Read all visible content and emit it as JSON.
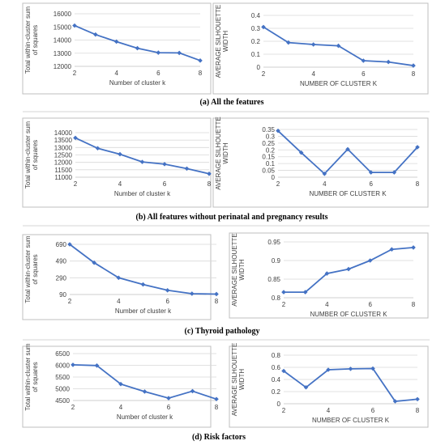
{
  "chart_data": [
    {
      "type": "line",
      "title": "",
      "x": [
        2,
        3,
        4,
        5,
        6,
        7,
        8
      ],
      "values": [
        15100,
        14420,
        13880,
        13380,
        13040,
        13020,
        12440
      ],
      "xlabel": "Number of cluster k",
      "ylabel": [
        "Total within-cluster sum",
        "of squares"
      ],
      "xlim": [
        2,
        8
      ],
      "ylim": [
        12000,
        16000
      ],
      "xticks": [
        2,
        4,
        6,
        8
      ],
      "yticks": [
        12000,
        13000,
        14000,
        15000,
        16000
      ],
      "yticklabels": [
        "12000",
        "13000",
        "14000",
        "15000",
        "16000"
      ],
      "grid": true
    },
    {
      "type": "line",
      "title": "",
      "x": [
        2,
        3,
        4,
        5,
        6,
        7,
        8
      ],
      "values": [
        0.31,
        0.19,
        0.175,
        0.165,
        0.05,
        0.04,
        0.012
      ],
      "xlabel": "NUMBER OF CLUSTER K",
      "ylabel": [
        "AVERAGE SILHOUETTE",
        "WIDTH"
      ],
      "xlim": [
        2,
        8
      ],
      "ylim": [
        0,
        0.4
      ],
      "xticks": [
        2,
        4,
        6,
        8
      ],
      "yticks": [
        0,
        0.1,
        0.2,
        0.3,
        0.4
      ],
      "yticklabels": [
        "0",
        "0.1",
        "0.2",
        "0.3",
        "0.4"
      ],
      "grid": true
    },
    {
      "type": "line",
      "title": "",
      "x": [
        2,
        3,
        4,
        5,
        6,
        7,
        8
      ],
      "values": [
        13650,
        12950,
        12550,
        12030,
        11880,
        11580,
        11230
      ],
      "xlabel": "Number of cluster k",
      "ylabel": [
        "Total within-cluster sum",
        "of squares"
      ],
      "xlim": [
        2,
        8
      ],
      "ylim": [
        11000,
        14000
      ],
      "xticks": [
        2,
        4,
        6,
        8
      ],
      "yticks": [
        11000,
        11500,
        12000,
        12500,
        13000,
        13500,
        14000
      ],
      "yticklabels": [
        "11000",
        "11500",
        "12000",
        "12500",
        "13000",
        "13500",
        "14000"
      ],
      "grid": true
    },
    {
      "type": "line",
      "title": "",
      "x": [
        2,
        3,
        4,
        5,
        6,
        7,
        8
      ],
      "values": [
        0.34,
        0.18,
        0.025,
        0.205,
        0.035,
        0.035,
        0.22
      ],
      "xlabel": "NUMBER OF CLUSTER K",
      "ylabel": [
        "AVERAGE SILHOUETTE",
        "WIDTH"
      ],
      "xlim": [
        2,
        8
      ],
      "ylim": [
        0,
        0.35
      ],
      "xticks": [
        2,
        4,
        6,
        8
      ],
      "yticks": [
        0,
        0.05,
        0.1,
        0.15,
        0.2,
        0.25,
        0.3,
        0.35
      ],
      "yticklabels": [
        "0",
        "0.05",
        "0.1",
        "0.15",
        "0.2",
        "0.25",
        "0.3",
        "0.35"
      ],
      "grid": true
    },
    {
      "type": "line",
      "title": "",
      "x": [
        2,
        3,
        4,
        5,
        6,
        7,
        8
      ],
      "values": [
        690,
        470,
        290,
        210,
        140,
        100,
        95
      ],
      "xlabel": "Number of cluster k",
      "ylabel": [
        "Total within-cluster sum",
        "of squares"
      ],
      "xlim": [
        2,
        8
      ],
      "ylim": [
        90,
        690
      ],
      "xticks": [
        2,
        4,
        6,
        8
      ],
      "yticks": [
        90,
        290,
        490,
        690
      ],
      "yticklabels": [
        "90",
        "290",
        "490",
        "690"
      ],
      "grid": true
    },
    {
      "type": "line",
      "title": "",
      "x": [
        2,
        3,
        4,
        5,
        6,
        7,
        8
      ],
      "values": [
        0.815,
        0.815,
        0.865,
        0.877,
        0.9,
        0.93,
        0.935
      ],
      "xlabel": "NUMBER OF CLUSTER K",
      "ylabel": [
        "AVERAGE SILHOUETTE",
        "WIDTH"
      ],
      "xlim": [
        2,
        8
      ],
      "ylim": [
        0.8,
        0.95
      ],
      "xticks": [
        2,
        4,
        6,
        8
      ],
      "yticks": [
        0.8,
        0.85,
        0.9,
        0.95
      ],
      "yticklabels": [
        "0.8",
        "0.85",
        "0.9",
        "0.95"
      ],
      "grid": true
    },
    {
      "type": "line",
      "title": "",
      "x": [
        2,
        3,
        4,
        5,
        6,
        7,
        8
      ],
      "values": [
        6020,
        5990,
        5200,
        4880,
        4600,
        4900,
        4560
      ],
      "xlabel": "Number of cluster k",
      "ylabel": [
        "Total within-cluster sum",
        "of squares"
      ],
      "xlim": [
        2,
        8
      ],
      "ylim": [
        4500,
        6500
      ],
      "xticks": [
        2,
        4,
        6,
        8
      ],
      "yticks": [
        4500,
        5000,
        5500,
        6000,
        6500
      ],
      "yticklabels": [
        "4500",
        "5000",
        "5500",
        "6000",
        "6500"
      ],
      "grid": true
    },
    {
      "type": "line",
      "title": "",
      "x": [
        2,
        3,
        4,
        5,
        6,
        7,
        8
      ],
      "values": [
        0.54,
        0.27,
        0.56,
        0.575,
        0.58,
        0.04,
        0.075
      ],
      "xlabel": "NUMBER OF CLUSTER K",
      "ylabel": [
        "AVERAGE SILHOUETTE",
        "WIDTH"
      ],
      "xlim": [
        2,
        8
      ],
      "ylim": [
        0,
        0.8
      ],
      "xticks": [
        2,
        4,
        6,
        8
      ],
      "yticks": [
        0,
        0.2,
        0.4,
        0.6,
        0.8
      ],
      "yticklabels": [
        "0",
        "0.2",
        "0.4",
        "0.6",
        "0.8"
      ],
      "grid": true
    }
  ],
  "captions": [
    "(a) All the features",
    "(b) All features without perinatal and pregnancy results",
    "(c) Thyroid pathology",
    "(d) Risk factors"
  ],
  "colors": {
    "series": "#4472c4",
    "grid": "#d9d9d9",
    "frame": "#bfbfbf"
  }
}
